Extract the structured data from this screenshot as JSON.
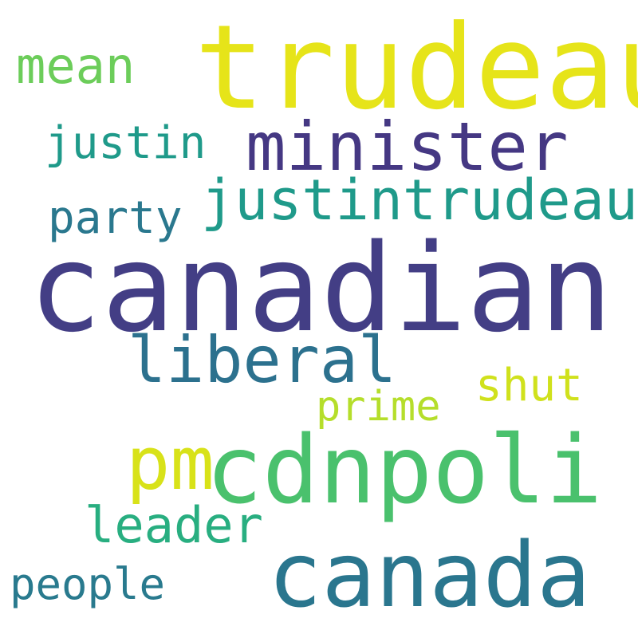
{
  "words": [
    {
      "id": "trudeau",
      "text": "trudeau",
      "color": "#e6e419"
    },
    {
      "id": "mean",
      "text": "mean",
      "color": "#6ccd5a"
    },
    {
      "id": "minister",
      "text": "minister",
      "color": "#453883"
    },
    {
      "id": "justin",
      "text": "justin",
      "color": "#1f9a8a"
    },
    {
      "id": "justintrudeau",
      "text": "justintrudeau",
      "color": "#1f9a8a"
    },
    {
      "id": "party",
      "text": "party",
      "color": "#2a788e"
    },
    {
      "id": "canadian",
      "text": "canadian",
      "color": "#433e85"
    },
    {
      "id": "liberal",
      "text": "liberal",
      "color": "#2c718e"
    },
    {
      "id": "shut",
      "text": "shut",
      "color": "#d0e11c"
    },
    {
      "id": "prime",
      "text": "prime",
      "color": "#b5de2b"
    },
    {
      "id": "pm",
      "text": "pm",
      "color": "#d8e219"
    },
    {
      "id": "cdnpoli",
      "text": "cdnpoli",
      "color": "#4ac16d"
    },
    {
      "id": "leader",
      "text": "leader",
      "color": "#28ae80"
    },
    {
      "id": "canada",
      "text": "canada",
      "color": "#2a768e"
    },
    {
      "id": "people",
      "text": "people",
      "color": "#297a8e"
    }
  ]
}
